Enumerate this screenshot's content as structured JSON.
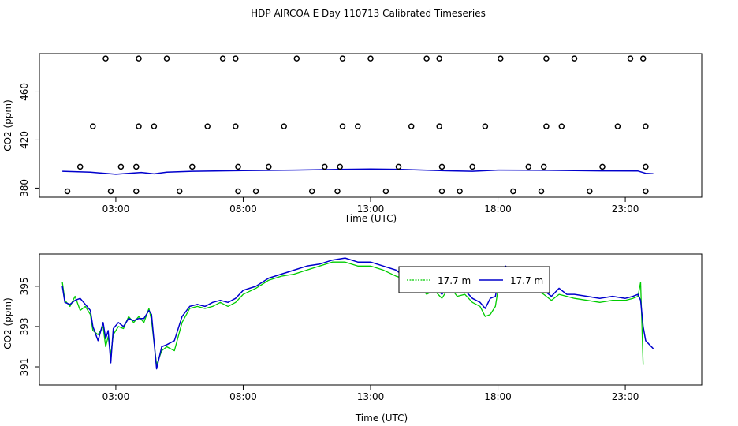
{
  "title": "HDP AIRCOA E  Day 110713  Calibrated Timeseries",
  "colors": {
    "green": "#00cc00",
    "blue": "#0000cc",
    "black": "#000000"
  },
  "chart_data": [
    {
      "type": "scatter",
      "xlabel": "Time (UTC)",
      "ylabel": "CO2 (ppm)",
      "xlim": [
        0.0,
        26.0
      ],
      "ylim": [
        372.4,
        491.8
      ],
      "x_ticks": [
        3,
        8,
        13,
        18,
        23
      ],
      "x_tick_labels": [
        "03:00",
        "08:00",
        "13:00",
        "18:00",
        "23:00"
      ],
      "y_ticks": [
        380,
        420,
        460
      ],
      "y_tick_labels": [
        "380",
        "420",
        "460"
      ],
      "grid": false,
      "scatter_series": {
        "marker": "open-circle",
        "points": [
          [
            1.1,
            377.3
          ],
          [
            1.6,
            397.7
          ],
          [
            2.1,
            431.4
          ],
          [
            2.6,
            487.8
          ],
          [
            2.8,
            377.3
          ],
          [
            3.2,
            397.7
          ],
          [
            3.8,
            377.3
          ],
          [
            3.8,
            397.7
          ],
          [
            3.9,
            431.4
          ],
          [
            3.9,
            487.8
          ],
          [
            4.5,
            431.4
          ],
          [
            5.0,
            487.8
          ],
          [
            5.5,
            377.3
          ],
          [
            6.0,
            397.7
          ],
          [
            6.6,
            431.4
          ],
          [
            7.2,
            487.8
          ],
          [
            7.7,
            487.8
          ],
          [
            7.7,
            431.4
          ],
          [
            7.8,
            397.7
          ],
          [
            7.8,
            377.3
          ],
          [
            8.5,
            377.3
          ],
          [
            9.0,
            397.7
          ],
          [
            9.6,
            431.4
          ],
          [
            10.1,
            487.8
          ],
          [
            10.7,
            377.3
          ],
          [
            11.2,
            397.7
          ],
          [
            11.7,
            377.3
          ],
          [
            11.8,
            397.7
          ],
          [
            11.9,
            431.4
          ],
          [
            11.9,
            487.8
          ],
          [
            12.5,
            431.4
          ],
          [
            13.0,
            487.8
          ],
          [
            13.6,
            377.3
          ],
          [
            14.1,
            397.7
          ],
          [
            14.6,
            431.4
          ],
          [
            15.2,
            487.8
          ],
          [
            15.7,
            487.8
          ],
          [
            15.7,
            431.4
          ],
          [
            15.8,
            397.7
          ],
          [
            15.8,
            377.3
          ],
          [
            16.5,
            377.3
          ],
          [
            17.0,
            397.7
          ],
          [
            17.5,
            431.4
          ],
          [
            18.1,
            487.8
          ],
          [
            18.6,
            377.3
          ],
          [
            19.2,
            397.7
          ],
          [
            19.7,
            377.3
          ],
          [
            19.8,
            397.7
          ],
          [
            19.9,
            431.4
          ],
          [
            19.9,
            487.8
          ],
          [
            20.5,
            431.4
          ],
          [
            21.0,
            487.8
          ],
          [
            21.6,
            377.3
          ],
          [
            22.1,
            397.7
          ],
          [
            22.7,
            431.4
          ],
          [
            23.2,
            487.8
          ],
          [
            23.7,
            487.8
          ],
          [
            23.8,
            431.4
          ],
          [
            23.8,
            397.7
          ],
          [
            23.8,
            377.3
          ]
        ]
      },
      "line_series": [
        {
          "color": "#0000cc",
          "x": [
            0.9,
            2.0,
            3.0,
            4.0,
            4.5,
            5.0,
            6.0,
            8.0,
            10.0,
            12.0,
            13.0,
            14.0,
            16.0,
            17.0,
            18.0,
            20.0,
            22.0,
            23.5,
            23.8,
            24.1
          ],
          "y": [
            394.0,
            393.2,
            391.5,
            393.0,
            391.8,
            393.2,
            394.0,
            394.6,
            395.0,
            395.6,
            395.8,
            395.6,
            394.4,
            394.0,
            395.0,
            394.8,
            394.3,
            394.2,
            392.3,
            391.9
          ]
        }
      ]
    },
    {
      "type": "line",
      "xlabel": "Time (UTC)",
      "ylabel": "CO2 (ppm)",
      "xlim": [
        0.0,
        26.0
      ],
      "ylim": [
        390.1,
        396.6
      ],
      "x_ticks": [
        3,
        8,
        13,
        18,
        23
      ],
      "x_tick_labels": [
        "03:00",
        "08:00",
        "13:00",
        "18:00",
        "23:00"
      ],
      "y_ticks": [
        391,
        393,
        395
      ],
      "y_tick_labels": [
        "391",
        "393",
        "395"
      ],
      "grid": false,
      "legend_placement": "top-center",
      "series": [
        {
          "name": "17.7 m",
          "color": "#00cc00",
          "x": [
            0.9,
            1.0,
            1.2,
            1.4,
            1.6,
            1.8,
            2.0,
            2.1,
            2.3,
            2.5,
            2.6,
            2.7,
            2.8,
            2.9,
            3.1,
            3.3,
            3.5,
            3.7,
            3.9,
            4.1,
            4.3,
            4.4,
            4.6,
            4.8,
            5.0,
            5.3,
            5.6,
            5.9,
            6.2,
            6.5,
            6.8,
            7.1,
            7.4,
            7.7,
            8.0,
            8.5,
            9.0,
            9.5,
            10.0,
            10.5,
            11.0,
            11.5,
            12.0,
            12.5,
            13.0,
            13.5,
            14.0,
            14.5,
            14.9,
            15.2,
            15.5,
            15.8,
            16.1,
            16.4,
            16.7,
            17.0,
            17.3,
            17.5,
            17.7,
            17.9,
            18.1,
            18.3,
            18.6,
            18.9,
            19.2,
            19.5,
            19.8,
            20.1,
            20.4,
            20.7,
            21.0,
            21.5,
            22.0,
            22.5,
            23.0,
            23.3,
            23.5,
            23.6,
            23.7
          ],
          "y": [
            395.2,
            394.3,
            394.0,
            394.5,
            393.8,
            394.0,
            393.6,
            392.8,
            392.6,
            393.0,
            392.0,
            392.5,
            391.6,
            392.6,
            393.0,
            392.9,
            393.5,
            393.2,
            393.5,
            393.2,
            393.9,
            393.3,
            391.1,
            391.8,
            392.0,
            391.8,
            393.2,
            393.9,
            394.0,
            393.9,
            394.0,
            394.2,
            394.0,
            394.2,
            394.6,
            394.9,
            395.3,
            395.5,
            395.6,
            395.8,
            396.0,
            396.2,
            396.2,
            396.0,
            396.0,
            395.8,
            395.5,
            395.3,
            395.0,
            394.6,
            394.8,
            394.4,
            395.0,
            394.5,
            394.6,
            394.2,
            394.0,
            393.5,
            393.6,
            394.0,
            395.6,
            395.8,
            395.4,
            395.0,
            395.2,
            394.8,
            394.6,
            394.3,
            394.6,
            394.5,
            394.4,
            394.3,
            394.2,
            394.3,
            394.3,
            394.4,
            394.5,
            395.2,
            391.1
          ]
        },
        {
          "name": "17.7 m",
          "color": "#0000cc",
          "x": [
            0.9,
            1.0,
            1.2,
            1.4,
            1.6,
            1.8,
            2.0,
            2.1,
            2.3,
            2.5,
            2.6,
            2.7,
            2.8,
            2.9,
            3.1,
            3.3,
            3.5,
            3.7,
            3.9,
            4.1,
            4.3,
            4.4,
            4.6,
            4.8,
            5.0,
            5.3,
            5.6,
            5.9,
            6.2,
            6.5,
            6.8,
            7.1,
            7.4,
            7.7,
            8.0,
            8.5,
            9.0,
            9.5,
            10.0,
            10.5,
            11.0,
            11.5,
            12.0,
            12.5,
            13.0,
            13.5,
            14.0,
            14.5,
            14.9,
            15.2,
            15.5,
            15.8,
            16.1,
            16.4,
            16.7,
            17.0,
            17.3,
            17.5,
            17.7,
            17.9,
            18.1,
            18.3,
            18.6,
            18.9,
            19.2,
            19.5,
            19.8,
            20.1,
            20.4,
            20.7,
            21.0,
            21.5,
            22.0,
            22.5,
            23.0,
            23.3,
            23.5,
            23.6,
            23.7,
            23.8,
            24.1
          ],
          "y": [
            395.0,
            394.2,
            394.1,
            394.3,
            394.4,
            394.1,
            393.8,
            393.0,
            392.3,
            393.2,
            392.4,
            392.8,
            391.2,
            392.9,
            393.2,
            393.0,
            393.4,
            393.3,
            393.4,
            393.4,
            393.8,
            393.6,
            390.9,
            392.0,
            392.1,
            392.3,
            393.5,
            394.0,
            394.1,
            394.0,
            394.2,
            394.3,
            394.2,
            394.4,
            394.8,
            395.0,
            395.4,
            395.6,
            395.8,
            396.0,
            396.1,
            396.3,
            396.4,
            396.2,
            396.2,
            396.0,
            395.8,
            395.3,
            395.2,
            394.7,
            395.0,
            394.6,
            395.1,
            394.7,
            394.8,
            394.4,
            394.2,
            393.9,
            394.4,
            394.5,
            395.8,
            396.0,
            395.6,
            395.2,
            395.3,
            395.0,
            394.8,
            394.5,
            394.9,
            394.6,
            394.6,
            394.5,
            394.4,
            394.5,
            394.4,
            394.5,
            394.6,
            394.3,
            393.0,
            392.3,
            391.9
          ]
        }
      ]
    }
  ]
}
